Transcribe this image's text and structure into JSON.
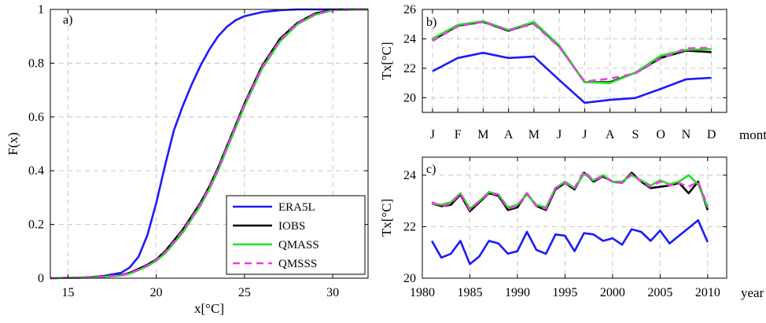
{
  "colors": {
    "ERA5L": "#1a1aff",
    "IOBS": "#000000",
    "QMASS": "#22e022",
    "QMSSS": "#e83ee8"
  },
  "chart_data": [
    {
      "id": "a",
      "panel_label": "a)",
      "type": "line",
      "title": "",
      "xlabel": "x[°C]",
      "ylabel": "F(x)",
      "xlim": [
        14,
        32
      ],
      "ylim": [
        0,
        1
      ],
      "xticks": [
        15,
        20,
        25,
        30
      ],
      "yticks": [
        0,
        0.2,
        0.4,
        0.6,
        0.8,
        1
      ],
      "ytick_labels": [
        "0",
        "0.2",
        "0.4",
        "0.6",
        "0.8",
        "1"
      ],
      "grid": true,
      "legend": "bottom-right",
      "series": [
        {
          "name": "ERA5L",
          "color_key": "ERA5L",
          "dash": false,
          "x": [
            14,
            16,
            17,
            18,
            18.5,
            19,
            19.5,
            20,
            20.5,
            21,
            21.5,
            22,
            22.5,
            23,
            23.5,
            24,
            24.5,
            25,
            26,
            27,
            28,
            29,
            32
          ],
          "y": [
            0,
            0.003,
            0.008,
            0.02,
            0.04,
            0.08,
            0.16,
            0.28,
            0.42,
            0.55,
            0.64,
            0.72,
            0.79,
            0.85,
            0.9,
            0.935,
            0.96,
            0.975,
            0.99,
            0.997,
            1,
            1,
            1
          ]
        },
        {
          "name": "IOBS",
          "color_key": "IOBS",
          "dash": false,
          "x": [
            14,
            16,
            17,
            18,
            18.5,
            19,
            19.5,
            20,
            20.5,
            21,
            21.5,
            22,
            22.5,
            23,
            23.5,
            24,
            24.5,
            25,
            25.5,
            26,
            26.5,
            27,
            28,
            29,
            30,
            32
          ],
          "y": [
            0,
            0.003,
            0.006,
            0.012,
            0.02,
            0.035,
            0.05,
            0.07,
            0.1,
            0.14,
            0.18,
            0.23,
            0.28,
            0.34,
            0.41,
            0.49,
            0.57,
            0.65,
            0.72,
            0.79,
            0.84,
            0.89,
            0.95,
            0.985,
            0.999,
            1
          ]
        },
        {
          "name": "QMASS",
          "color_key": "QMASS",
          "dash": false,
          "x": [
            14,
            16,
            17,
            18,
            18.5,
            19,
            19.5,
            20,
            20.5,
            21,
            21.5,
            22,
            22.5,
            23,
            23.5,
            24,
            24.5,
            25,
            25.5,
            26,
            26.5,
            27,
            28,
            29,
            30,
            32
          ],
          "y": [
            0,
            0.002,
            0.005,
            0.01,
            0.017,
            0.03,
            0.045,
            0.065,
            0.092,
            0.13,
            0.17,
            0.22,
            0.27,
            0.33,
            0.4,
            0.48,
            0.56,
            0.64,
            0.71,
            0.78,
            0.83,
            0.88,
            0.945,
            0.98,
            0.997,
            1
          ]
        },
        {
          "name": "QMSSS",
          "color_key": "QMSSS",
          "dash": true,
          "x": [
            14,
            16,
            17,
            18,
            18.5,
            19,
            19.5,
            20,
            20.5,
            21,
            21.5,
            22,
            22.5,
            23,
            23.5,
            24,
            24.5,
            25,
            25.5,
            26,
            26.5,
            27,
            28,
            29,
            30,
            32
          ],
          "y": [
            0,
            0.002,
            0.005,
            0.011,
            0.018,
            0.032,
            0.047,
            0.068,
            0.096,
            0.135,
            0.175,
            0.225,
            0.275,
            0.335,
            0.405,
            0.485,
            0.565,
            0.645,
            0.715,
            0.785,
            0.835,
            0.885,
            0.948,
            0.982,
            0.998,
            1
          ]
        }
      ]
    },
    {
      "id": "b",
      "panel_label": "b)",
      "type": "line",
      "title": "",
      "xlabel": "month",
      "ylabel": "Tx[°C]",
      "categories": [
        "J",
        "F",
        "M",
        "A",
        "M",
        "J",
        "J",
        "A",
        "S",
        "O",
        "N",
        "D"
      ],
      "ylim": [
        19,
        26
      ],
      "yticks": [
        20,
        22,
        24,
        26
      ],
      "grid": true,
      "series": [
        {
          "color_key": "ERA5L",
          "dash": false,
          "values": [
            21.8,
            22.7,
            23.05,
            22.7,
            22.8,
            21.2,
            19.65,
            19.85,
            19.98,
            20.6,
            21.25,
            21.35
          ]
        },
        {
          "color_key": "IOBS",
          "dash": false,
          "values": [
            23.9,
            24.9,
            25.15,
            24.55,
            25.1,
            23.5,
            21.05,
            21.05,
            21.7,
            22.7,
            23.2,
            23.1
          ]
        },
        {
          "color_key": "QMASS",
          "dash": false,
          "values": [
            24.0,
            24.95,
            25.2,
            24.6,
            25.15,
            23.55,
            21.05,
            21.0,
            21.7,
            22.85,
            23.25,
            23.3
          ]
        },
        {
          "color_key": "QMSSS",
          "dash": true,
          "values": [
            23.85,
            24.85,
            25.15,
            24.6,
            25.0,
            23.45,
            21.1,
            21.3,
            21.65,
            22.65,
            23.35,
            23.4
          ]
        }
      ]
    },
    {
      "id": "c",
      "panel_label": "c)",
      "type": "line",
      "title": "",
      "xlabel": "year",
      "ylabel": "Tx[°C]",
      "xlim": [
        1980,
        2012
      ],
      "xticks": [
        1980,
        1985,
        1990,
        1995,
        2000,
        2005,
        2010
      ],
      "ylim": [
        20,
        24.7
      ],
      "yticks": [
        20,
        22,
        24
      ],
      "grid": true,
      "x": [
        1981,
        1982,
        1983,
        1984,
        1985,
        1986,
        1987,
        1988,
        1989,
        1990,
        1991,
        1992,
        1993,
        1994,
        1995,
        1996,
        1997,
        1998,
        1999,
        2000,
        2001,
        2002,
        2003,
        2004,
        2005,
        2006,
        2007,
        2008,
        2009,
        2010
      ],
      "series": [
        {
          "color_key": "ERA5L",
          "dash": false,
          "values": [
            21.45,
            20.8,
            20.95,
            21.45,
            20.55,
            20.85,
            21.45,
            21.35,
            20.95,
            21.05,
            21.8,
            21.1,
            20.95,
            21.7,
            21.65,
            21.05,
            21.75,
            21.7,
            21.45,
            21.55,
            21.3,
            21.9,
            21.8,
            21.45,
            21.85,
            21.35,
            21.65,
            21.95,
            22.25,
            21.4
          ]
        },
        {
          "color_key": "IOBS",
          "dash": false,
          "values": [
            22.9,
            22.8,
            22.85,
            23.25,
            22.6,
            22.95,
            23.3,
            23.2,
            22.65,
            22.75,
            23.3,
            22.8,
            22.65,
            23.45,
            23.7,
            23.45,
            24.1,
            23.75,
            23.95,
            23.75,
            23.7,
            24.1,
            23.75,
            23.5,
            23.55,
            23.6,
            23.7,
            23.3,
            23.75,
            22.65
          ]
        },
        {
          "color_key": "QMASS",
          "dash": false,
          "values": [
            22.9,
            22.85,
            22.95,
            23.3,
            22.7,
            23.0,
            23.35,
            23.25,
            22.75,
            22.85,
            23.25,
            22.85,
            22.75,
            23.5,
            23.75,
            23.5,
            24.05,
            23.8,
            24.0,
            23.75,
            23.75,
            24.0,
            23.8,
            23.6,
            23.8,
            23.65,
            23.75,
            24.0,
            23.65,
            22.75
          ]
        },
        {
          "color_key": "QMSSS",
          "dash": true,
          "values": [
            22.95,
            22.8,
            22.9,
            23.3,
            22.65,
            23.0,
            23.3,
            23.25,
            22.7,
            22.8,
            23.3,
            22.8,
            22.7,
            23.5,
            23.7,
            23.5,
            24.15,
            23.8,
            23.95,
            23.75,
            23.7,
            24.05,
            23.75,
            23.55,
            23.75,
            23.6,
            23.7,
            23.55,
            23.75,
            22.8
          ]
        }
      ]
    }
  ]
}
